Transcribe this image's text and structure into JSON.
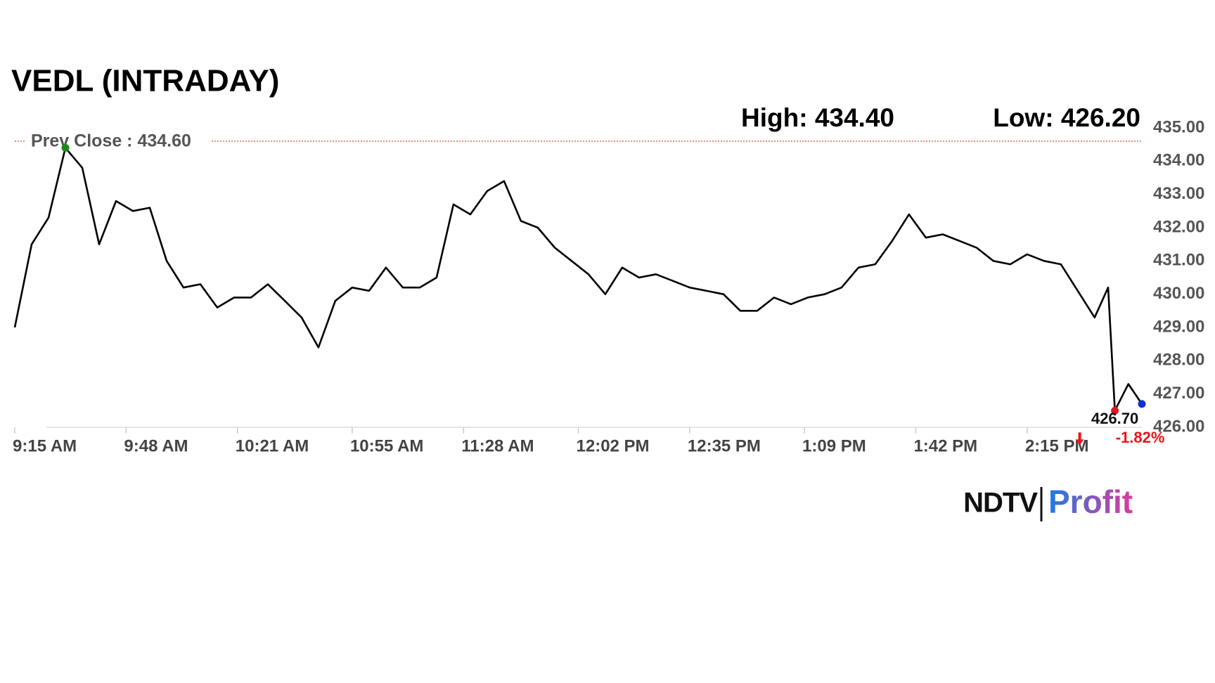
{
  "chart_data": {
    "type": "line",
    "title": "VEDL (INTRADAY)",
    "high_label": "High: 434.40",
    "low_label": "Low: 426.20",
    "prev_close": {
      "value": 434.6,
      "label": "Prev Close : 434.60"
    },
    "last_label": "426.70",
    "change_label": "-1.82%",
    "brand": {
      "left": "NDTV",
      "right": "Profit"
    },
    "x": [
      "9:15 AM",
      "9:20 AM",
      "9:25 AM",
      "9:30 AM",
      "9:35 AM",
      "9:40 AM",
      "9:45 AM",
      "9:50 AM",
      "9:55 AM",
      "10:00 AM",
      "10:05 AM",
      "10:10 AM",
      "10:15 AM",
      "10:20 AM",
      "10:25 AM",
      "10:30 AM",
      "10:35 AM",
      "10:40 AM",
      "10:45 AM",
      "10:50 AM",
      "10:55 AM",
      "11:00 AM",
      "11:05 AM",
      "11:10 AM",
      "11:15 AM",
      "11:20 AM",
      "11:25 AM",
      "11:30 AM",
      "11:35 AM",
      "11:40 AM",
      "11:45 AM",
      "11:50 AM",
      "11:55 AM",
      "12:00 PM",
      "12:05 PM",
      "12:10 PM",
      "12:15 PM",
      "12:20 PM",
      "12:25 PM",
      "12:30 PM",
      "12:35 PM",
      "12:40 PM",
      "12:45 PM",
      "12:50 PM",
      "12:55 PM",
      "1:00 PM",
      "1:05 PM",
      "1:10 PM",
      "1:15 PM",
      "1:20 PM",
      "1:25 PM",
      "1:30 PM",
      "1:35 PM",
      "1:40 PM",
      "1:45 PM",
      "1:50 PM",
      "1:55 PM",
      "2:00 PM",
      "2:05 PM",
      "2:10 PM",
      "2:15 PM",
      "2:20 PM",
      "2:25 PM",
      "2:30 PM",
      "2:35 PM",
      "2:39 PM",
      "2:41 PM",
      "2:45 PM",
      "2:49 PM"
    ],
    "series": [
      {
        "name": "VEDL",
        "color": "#000000",
        "values": [
          429.0,
          431.5,
          432.3,
          434.4,
          433.8,
          431.5,
          432.8,
          432.5,
          432.6,
          431.0,
          430.2,
          430.3,
          429.6,
          429.9,
          429.9,
          430.3,
          429.8,
          429.3,
          428.4,
          429.8,
          430.2,
          430.1,
          430.8,
          430.2,
          430.2,
          430.5,
          432.7,
          432.4,
          433.1,
          433.4,
          432.2,
          432.0,
          431.4,
          431.0,
          430.6,
          430.0,
          430.8,
          430.5,
          430.6,
          430.4,
          430.2,
          430.1,
          430.0,
          429.5,
          429.5,
          429.9,
          429.7,
          429.9,
          430.0,
          430.2,
          430.8,
          430.9,
          431.6,
          432.4,
          431.7,
          431.8,
          431.6,
          431.4,
          431.0,
          430.9,
          431.2,
          431.0,
          430.9,
          430.1,
          429.3,
          430.2,
          426.5,
          427.3,
          426.7
        ]
      }
    ],
    "xlim": [
      "9:15 AM",
      "2:49 PM"
    ],
    "xticks": [
      "9:15 AM",
      "9:48 AM",
      "10:21 AM",
      "10:55 AM",
      "11:28 AM",
      "12:02 PM",
      "12:35 PM",
      "1:09 PM",
      "1:42 PM",
      "2:15 PM"
    ],
    "ylim": [
      426,
      435
    ],
    "yticks": [
      {
        "value": 435,
        "label": "435.00"
      },
      {
        "value": 434,
        "label": "434.00"
      },
      {
        "value": 433,
        "label": "433.00"
      },
      {
        "value": 432,
        "label": "432.00"
      },
      {
        "value": 431,
        "label": "431.00"
      },
      {
        "value": 430,
        "label": "430.00"
      },
      {
        "value": 429,
        "label": "429.00"
      },
      {
        "value": 428,
        "label": "428.00"
      },
      {
        "value": 427,
        "label": "427.00"
      },
      {
        "value": 426,
        "label": "426.00"
      }
    ],
    "markers": {
      "high": {
        "index": 3,
        "color": "#1a8a1a"
      },
      "low": {
        "index": 66,
        "color": "#e8141b"
      },
      "last": {
        "index": 68,
        "color": "#1030d0"
      }
    },
    "grid": false
  }
}
